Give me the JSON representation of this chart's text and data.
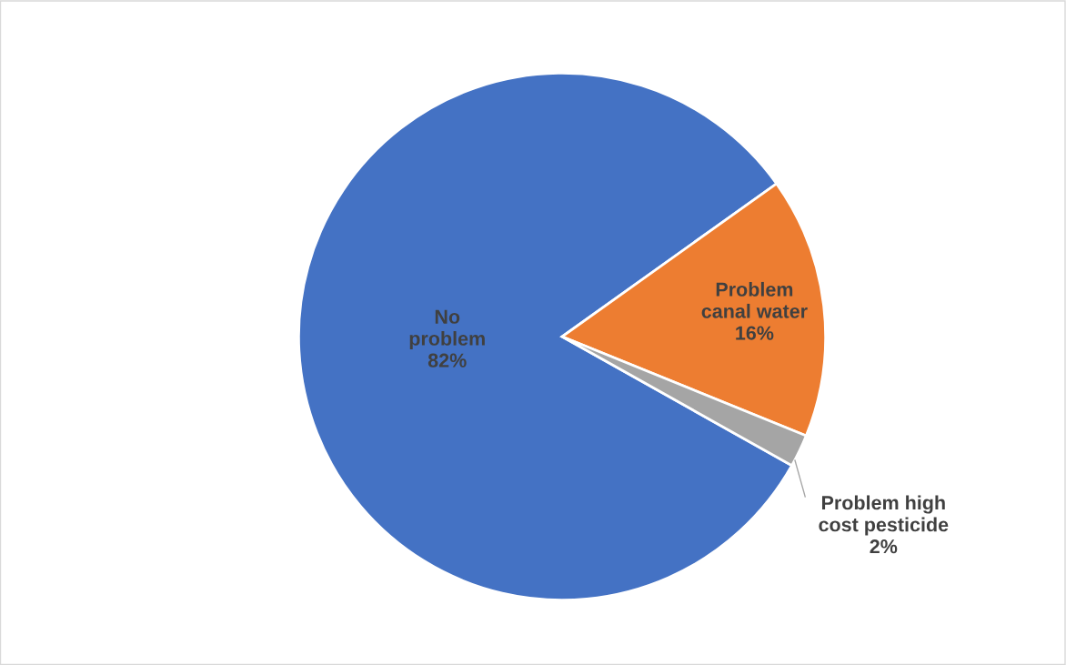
{
  "chart_data": {
    "type": "pie",
    "categories": [
      "No problem",
      "Problem canal water",
      "Problem high cost pesticide"
    ],
    "values": [
      82,
      16,
      2
    ],
    "colors": [
      "#4472c4",
      "#ed7d31",
      "#a5a5a5"
    ],
    "value_labels": [
      "82%",
      "16%",
      "2%"
    ],
    "legend": false
  }
}
